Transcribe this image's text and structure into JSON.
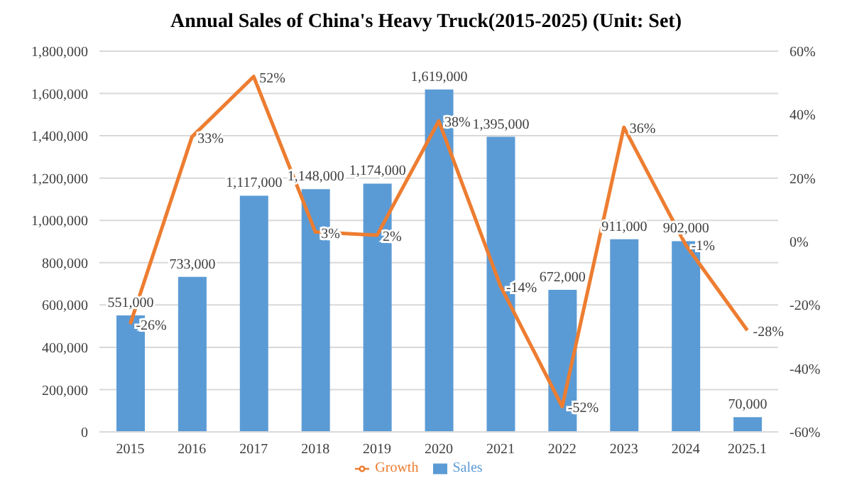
{
  "chart_data": {
    "type": "bar",
    "title": "Annual Sales of China's Heavy Truck(2015-2025) (Unit: Set)",
    "categories": [
      "2015",
      "2016",
      "2017",
      "2018",
      "2019",
      "2020",
      "2021",
      "2022",
      "2023",
      "2024",
      "2025.1"
    ],
    "series": [
      {
        "name": "Sales",
        "color": "#5b9bd5",
        "values": [
          551000,
          733000,
          1117000,
          1148000,
          1174000,
          1619000,
          1395000,
          672000,
          911000,
          902000,
          70000
        ],
        "value_labels": [
          "551,000",
          "733,000",
          "1,117,000",
          "1,148,000",
          "1,174,000",
          "1,619,000",
          "1,395,000",
          "672,000",
          "911,000",
          "902,000",
          "70,000"
        ]
      },
      {
        "name": "Growth",
        "type": "line",
        "axis": "y2",
        "color": "#ed7d31",
        "values": [
          -26,
          33,
          52,
          3,
          2,
          38,
          -14,
          -52,
          36,
          -1,
          -28
        ],
        "value_labels": [
          "-26%",
          "33%",
          "52%",
          "3%",
          "2%",
          "38%",
          "-14%",
          "-52%",
          "36%",
          "-1%",
          "-28%"
        ]
      }
    ],
    "ylim": [
      0,
      1800000
    ],
    "yticks": [
      {
        "value": 0,
        "label": "0"
      },
      {
        "value": 200000,
        "label": "200,000"
      },
      {
        "value": 400000,
        "label": "400,000"
      },
      {
        "value": 600000,
        "label": "600,000"
      },
      {
        "value": 800000,
        "label": "800,000"
      },
      {
        "value": 1000000,
        "label": "1,000,000"
      },
      {
        "value": 1200000,
        "label": "1,200,000"
      },
      {
        "value": 1400000,
        "label": "1,400,000"
      },
      {
        "value": 1600000,
        "label": "1,600,000"
      },
      {
        "value": 1800000,
        "label": "1,800,000"
      }
    ],
    "y2lim": [
      -60,
      60
    ],
    "y2ticks": [
      {
        "value": -60,
        "label": "-60%"
      },
      {
        "value": -40,
        "label": "-40%"
      },
      {
        "value": -20,
        "label": "-20%"
      },
      {
        "value": 0,
        "label": "0%"
      },
      {
        "value": 20,
        "label": "20%"
      },
      {
        "value": 40,
        "label": "40%"
      },
      {
        "value": 60,
        "label": "60%"
      }
    ],
    "grid": "y",
    "legend": "bottom",
    "marker": "none",
    "line_style": "solid"
  }
}
